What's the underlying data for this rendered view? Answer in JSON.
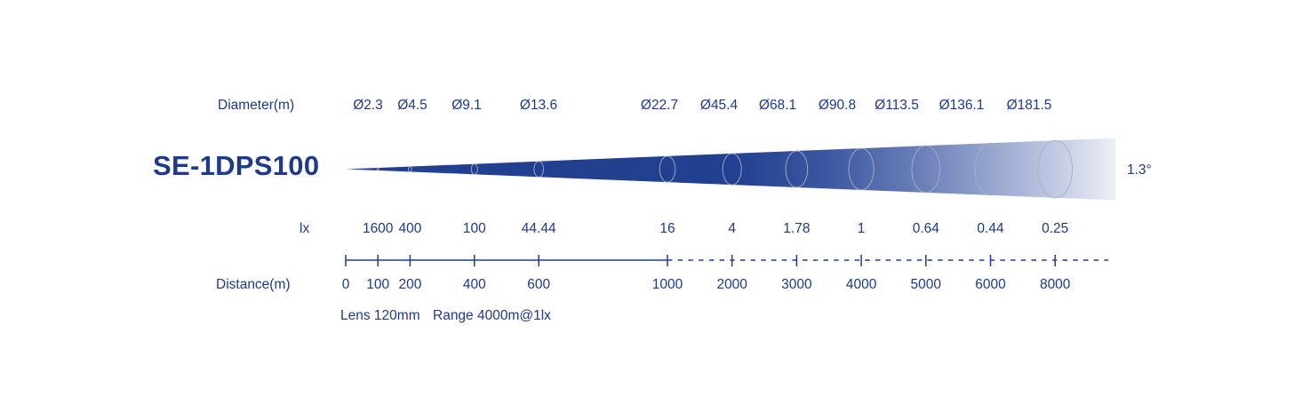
{
  "product_title": "SE-1DPS100",
  "labels": {
    "diameter_row": "Diameter(m)",
    "lux_row": "lx",
    "distance_row": "Distance(m)"
  },
  "beam": {
    "angle_label": "1.3°",
    "color_dark": "#21408F",
    "color_light": "#EDF0F7",
    "ellipse_stroke": "#A8AEC2"
  },
  "footer": {
    "lens": "Lens 120mm",
    "range": "Range 4000m@1lx"
  },
  "colors": {
    "text": "#1E3A8C",
    "axis": "#1F3C8F"
  },
  "chart_data": {
    "type": "table",
    "title": "SE-1DPS100 beam spread diagram",
    "beam_angle_deg": 1.3,
    "lens": "120mm",
    "range": "4000m@1lx",
    "columns": [
      "distance_m",
      "beam_diameter_m",
      "illuminance_lx"
    ],
    "axis": {
      "solid_range_m": [
        0,
        1000
      ],
      "dashed_range_m": [
        1000,
        8000
      ],
      "grid": false,
      "tick_labels": [
        "0",
        "100",
        "200",
        "400",
        "600",
        "1000",
        "2000",
        "3000",
        "4000",
        "5000",
        "6000",
        "8000"
      ]
    },
    "points": [
      {
        "distance_m": 0,
        "distance_label": "0",
        "diameter_label": null,
        "lux_label": null
      },
      {
        "distance_m": 100,
        "distance_label": "100",
        "diameter_label": "Ø2.3",
        "lux_label": "1600"
      },
      {
        "distance_m": 200,
        "distance_label": "200",
        "diameter_label": "Ø4.5",
        "lux_label": "400"
      },
      {
        "distance_m": 400,
        "distance_label": "400",
        "diameter_label": "Ø9.1",
        "lux_label": "100"
      },
      {
        "distance_m": 600,
        "distance_label": "600",
        "diameter_label": "Ø13.6",
        "lux_label": "44.44"
      },
      {
        "distance_m": 1000,
        "distance_label": "1000",
        "diameter_label": "Ø22.7",
        "lux_label": "16"
      },
      {
        "distance_m": 2000,
        "distance_label": "2000",
        "diameter_label": "Ø45.4",
        "lux_label": "4"
      },
      {
        "distance_m": 3000,
        "distance_label": "3000",
        "diameter_label": "Ø68.1",
        "lux_label": "1.78"
      },
      {
        "distance_m": 4000,
        "distance_label": "4000",
        "diameter_label": "Ø90.8",
        "lux_label": "1"
      },
      {
        "distance_m": 5000,
        "distance_label": "5000",
        "diameter_label": "Ø113.5",
        "lux_label": "0.64"
      },
      {
        "distance_m": 6000,
        "distance_label": "6000",
        "diameter_label": "Ø136.1",
        "lux_label": "0.44"
      },
      {
        "distance_m": 8000,
        "distance_label": "8000",
        "diameter_label": "Ø181.5",
        "lux_label": "0.25"
      }
    ]
  }
}
